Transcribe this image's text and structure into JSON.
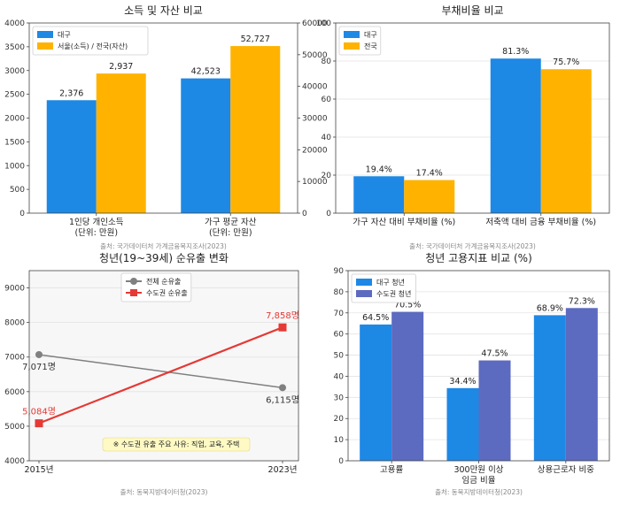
{
  "chart_data": [
    {
      "type": "bar",
      "title": "소득 및 자산 비교",
      "source": "출처: 국가데이터처 가계금융복지조사(2023)",
      "dual_axis": true,
      "categories": [
        "1인당 개인소득\n(단위: 만원)",
        "가구 평균 자산\n(단위: 만원)"
      ],
      "series": [
        {
          "name": "대구",
          "color": "#1e88e5",
          "values": [
            2376,
            42523
          ],
          "labels": [
            "2,376",
            "42,523"
          ]
        },
        {
          "name": "서울(소득) / 전국(자산)",
          "color": "#ffb300",
          "values": [
            2937,
            52727
          ],
          "labels": [
            "2,937",
            "52,727"
          ]
        }
      ],
      "ylim_left": [
        0,
        4000
      ],
      "yticks_left": [
        0,
        500,
        1000,
        1500,
        2000,
        2500,
        3000,
        3500,
        4000
      ],
      "ylim_right": [
        0,
        60000
      ],
      "yticks_right": [
        0,
        10000,
        20000,
        30000,
        40000,
        50000,
        60000
      ],
      "legend": "top-left"
    },
    {
      "type": "bar",
      "title": "부채비율 비교",
      "source": "출처: 국가데이터처 가계금융복지조사(2023)",
      "categories": [
        "가구 자산 대비 부채비율 (%)",
        "저축액 대비 금융 부채비율 (%)"
      ],
      "series": [
        {
          "name": "대구",
          "color": "#1e88e5",
          "values": [
            19.4,
            81.3
          ],
          "labels": [
            "19.4%",
            "81.3%"
          ]
        },
        {
          "name": "전국",
          "color": "#ffb300",
          "values": [
            17.4,
            75.7
          ],
          "labels": [
            "17.4%",
            "75.7%"
          ]
        }
      ],
      "ylim": [
        0,
        100
      ],
      "yticks": [
        0,
        20,
        40,
        60,
        80,
        100
      ],
      "legend": "top-left"
    },
    {
      "type": "line",
      "title": "청년(19~39세) 순유출 변화",
      "source": "출처: 동북지방데이터청(2023)",
      "x": [
        "2015년",
        "2023년"
      ],
      "series": [
        {
          "name": "전체 순유출",
          "color": "#808080",
          "values": [
            7071,
            6115
          ],
          "labels": [
            "7,071명",
            "6,115명"
          ]
        },
        {
          "name": "수도권 순유출",
          "color": "#e53935",
          "values": [
            5084,
            7858
          ],
          "labels": [
            "5,084명",
            "7,858명"
          ]
        }
      ],
      "ylim": [
        4000,
        9500
      ],
      "yticks": [
        4000,
        5000,
        6000,
        7000,
        8000,
        9000
      ],
      "annotation": "※ 수도권 유출 주요 사유: 직업, 교육, 주택",
      "legend": "top-center"
    },
    {
      "type": "bar",
      "title": "청년 고용지표 비교 (%)",
      "source": "출처: 동북지방데이터청(2023)",
      "categories": [
        "고용률",
        "300만원 이상\n임금 비율",
        "상용근로자 비중"
      ],
      "series": [
        {
          "name": "대구 청년",
          "color": "#1e88e5",
          "values": [
            64.5,
            34.4,
            68.9
          ],
          "labels": [
            "64.5%",
            "34.4%",
            "68.9%"
          ]
        },
        {
          "name": "수도권 청년",
          "color": "#5c6bc0",
          "values": [
            70.5,
            47.5,
            72.3
          ],
          "labels": [
            "70.5%",
            "47.5%",
            "72.3%"
          ]
        }
      ],
      "ylim": [
        0,
        90
      ],
      "yticks": [
        0,
        10,
        20,
        30,
        40,
        50,
        60,
        70,
        80,
        90
      ],
      "legend": "top-left"
    }
  ]
}
